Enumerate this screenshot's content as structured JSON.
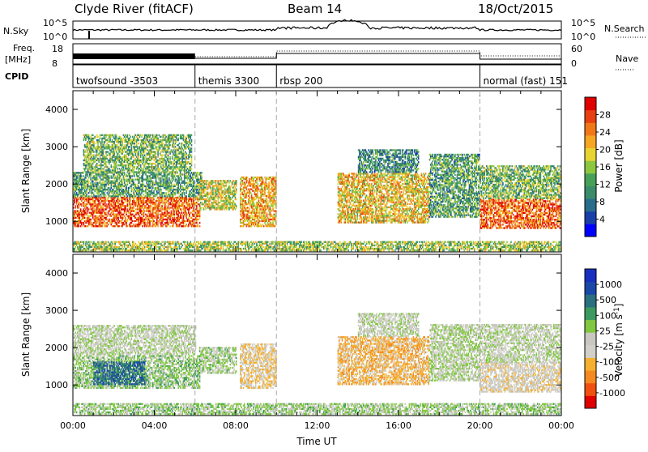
{
  "header": {
    "station": "Clyde River (fitACF)",
    "beam": "Beam 14",
    "date": "18/Oct/2015"
  },
  "top_panels": {
    "nsky_label": "N.Sky",
    "nsky_ticks": [
      "10^5",
      "10^0"
    ],
    "nsearch_label": "N.Search",
    "nsearch_ticks": [
      "10^5",
      "10^0"
    ],
    "freq_label_line1": "Freq.",
    "freq_label_line2": "[MHz]",
    "freq_ticks": [
      "18",
      "8"
    ],
    "nave_label": "Nave",
    "nave_ticks": [
      "60",
      "0"
    ],
    "cpid_label": "CPID",
    "cpid_segments": [
      {
        "name": "twofsound -3503",
        "start_h": 0,
        "end_h": 6
      },
      {
        "name": "themis 3300",
        "start_h": 6,
        "end_h": 10
      },
      {
        "name": "rbsp 200",
        "start_h": 10,
        "end_h": 20
      },
      {
        "name": "normal (fast) 151",
        "start_h": 20,
        "end_h": 24
      }
    ]
  },
  "chart_data": [
    {
      "type": "heatmap",
      "name": "power",
      "ylabel": "Slant Range [km]",
      "ylim": [
        180,
        4500
      ],
      "yticks": [
        "1000",
        "2000",
        "3000",
        "4000"
      ],
      "xlim": [
        0,
        24
      ],
      "colorbar": {
        "label": "Power [dB]",
        "ticks": [
          "28",
          "24",
          "20",
          "16",
          "12",
          "8",
          "4"
        ],
        "range": [
          0,
          32
        ],
        "colors": [
          "#0000ff",
          "#1a3fa8",
          "#2a6d8a",
          "#3a8c6a",
          "#46a057",
          "#8cc83f",
          "#e8d430",
          "#f5a623",
          "#f07818",
          "#e84010",
          "#e00000"
        ]
      },
      "echo_bands": [
        {
          "x0": 0.0,
          "x1": 6.2,
          "y0": 850,
          "y1": 1650,
          "value": 26
        },
        {
          "x0": 0.0,
          "x1": 6.3,
          "y0": 1650,
          "y1": 2300,
          "value": 12
        },
        {
          "x0": 0.5,
          "x1": 5.8,
          "y0": 2300,
          "y1": 3300,
          "value": 14
        },
        {
          "x0": 6.2,
          "x1": 8.0,
          "y0": 1300,
          "y1": 2100,
          "value": 18
        },
        {
          "x0": 8.2,
          "x1": 10.0,
          "y0": 850,
          "y1": 2200,
          "value": 22
        },
        {
          "x0": 13.0,
          "x1": 17.5,
          "y0": 950,
          "y1": 2300,
          "value": 20
        },
        {
          "x0": 14.0,
          "x1": 17.0,
          "y0": 2300,
          "y1": 2900,
          "value": 10
        },
        {
          "x0": 17.5,
          "x1": 20.0,
          "y0": 1100,
          "y1": 2800,
          "value": 12
        },
        {
          "x0": 20.0,
          "x1": 24.0,
          "y0": 800,
          "y1": 1600,
          "value": 26
        },
        {
          "x0": 20.0,
          "x1": 24.0,
          "y0": 1600,
          "y1": 2500,
          "value": 14
        },
        {
          "x0": 0.0,
          "x1": 24.0,
          "y0": 200,
          "y1": 450,
          "value": 16
        }
      ]
    },
    {
      "type": "heatmap",
      "name": "velocity",
      "ylabel": "Slant Range [km]",
      "xlabel": "Time UT",
      "ylim": [
        180,
        4500
      ],
      "yticks": [
        "1000",
        "2000",
        "3000",
        "4000"
      ],
      "xlim": [
        0,
        24
      ],
      "xticks": [
        "00:00",
        "04:00",
        "08:00",
        "12:00",
        "16:00",
        "20:00",
        "00:00"
      ],
      "colorbar": {
        "label": "Velocity [m s^-1]",
        "ticks": [
          "1000",
          "500",
          "100",
          "25",
          "-25",
          "-100",
          "-500",
          "-1000"
        ],
        "range": [
          -1200,
          1200
        ],
        "colors": [
          "#e00000",
          "#f05010",
          "#f58a20",
          "#f5b030",
          "#d0d0c8",
          "#c8c8c0",
          "#80c840",
          "#3c9a60",
          "#2a7080",
          "#1a48a8",
          "#1830c0"
        ]
      },
      "echo_bands": [
        {
          "x0": 0.0,
          "x1": 6.2,
          "y0": 900,
          "y1": 1800,
          "value": 180
        },
        {
          "x0": 0.0,
          "x1": 6.0,
          "y0": 1800,
          "y1": 2600,
          "value": 10
        },
        {
          "x0": 1.0,
          "x1": 3.5,
          "y0": 1000,
          "y1": 1600,
          "value": 700
        },
        {
          "x0": 6.2,
          "x1": 8.0,
          "y0": 1300,
          "y1": 2000,
          "value": 120
        },
        {
          "x0": 8.2,
          "x1": 10.0,
          "y0": 900,
          "y1": 2100,
          "value": -300
        },
        {
          "x0": 13.0,
          "x1": 17.5,
          "y0": 1000,
          "y1": 2300,
          "value": -400
        },
        {
          "x0": 14.0,
          "x1": 17.0,
          "y0": 2300,
          "y1": 2900,
          "value": -20
        },
        {
          "x0": 17.5,
          "x1": 20.0,
          "y0": 1100,
          "y1": 2600,
          "value": 60
        },
        {
          "x0": 20.0,
          "x1": 24.0,
          "y0": 800,
          "y1": 1600,
          "value": -200
        },
        {
          "x0": 20.0,
          "x1": 24.0,
          "y0": 1600,
          "y1": 2600,
          "value": 5
        },
        {
          "x0": 0.0,
          "x1": 24.0,
          "y0": 200,
          "y1": 500,
          "value": 150
        }
      ]
    }
  ]
}
